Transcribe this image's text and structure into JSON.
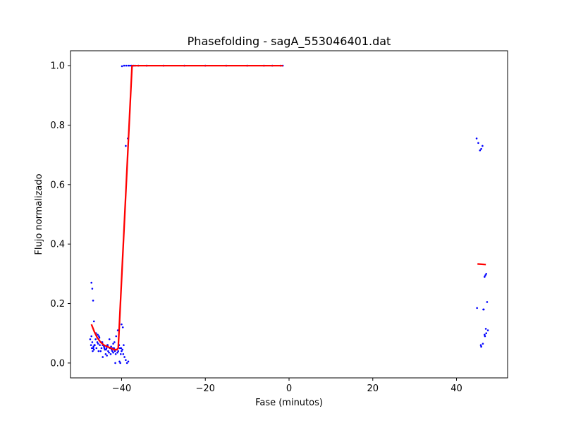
{
  "chart_data": {
    "type": "scatter",
    "title": "Phasefolding - sagA_553046401.dat",
    "xlabel": "Fase (minutos)",
    "ylabel": "Flujo normalizado",
    "xlim": [
      -52.2,
      52.2
    ],
    "ylim": [
      -0.05,
      1.05
    ],
    "xticks": [
      -40,
      -20,
      0,
      20,
      40
    ],
    "xtick_labels": [
      "−40",
      "−20",
      "0",
      "20",
      "40"
    ],
    "yticks": [
      0.0,
      0.2,
      0.4,
      0.6,
      0.8,
      1.0
    ],
    "ytick_labels": [
      "0.0",
      "0.2",
      "0.4",
      "0.6",
      "0.8",
      "1.0"
    ],
    "grid": false,
    "colors": {
      "points": "#0000ff",
      "fit": "#ff0000"
    },
    "series": [
      {
        "kind": "points",
        "x": [
          -47.5,
          -47.3,
          -47.1,
          -46.9,
          -46.7,
          -46.5,
          -47.2,
          -47.0,
          -46.8,
          -46.6,
          -46.4,
          -46.2,
          -46.0,
          -45.8,
          -45.6,
          -45.4,
          -45.2,
          -45.0,
          -44.8,
          -44.6,
          -44.4,
          -44.2,
          -44.0,
          -43.8,
          -43.6,
          -43.4,
          -43.2,
          -43.0,
          -42.8,
          -42.6,
          -42.4,
          -42.2,
          -42.0,
          -41.8,
          -41.6,
          -41.4,
          -41.2,
          -41.0,
          -40.8,
          -40.6,
          -40.4,
          -40.2,
          -40.0,
          -39.8,
          -39.6,
          -46.1,
          -45.7,
          -45.3,
          -44.9,
          -44.5,
          -44.1,
          -43.7,
          -43.3,
          -42.9,
          -42.5,
          -42.1,
          -41.7,
          -41.3,
          -40.9,
          -40.5,
          -40.1,
          -39.7,
          -39.3,
          -39.0,
          -38.7,
          -38.4,
          -41.5,
          -40.3,
          -39.5,
          -40.0,
          -42.0,
          -43.5,
          -44.5,
          -45.5,
          -47.2,
          -47.0,
          -46.8,
          -46.6,
          -39.0,
          -38.5,
          -39.9,
          -39.4,
          -38.9,
          -38.4,
          -38.0,
          -37.6,
          -37.2,
          -36.8,
          -36.0,
          -34.0,
          -30.0,
          -25.0,
          -20.0,
          -15.0,
          -10.0,
          -6.0,
          -4.0,
          -2.0,
          -1.5,
          44.8,
          45.2,
          45.6,
          45.9,
          46.2,
          46.5,
          46.7,
          46.9,
          47.1,
          47.3,
          45.9,
          46.3,
          46.7,
          47.1,
          47.5,
          45.8,
          46.4,
          47.0,
          44.9,
          46.8
        ],
        "y": [
          0.08,
          0.06,
          0.05,
          0.04,
          0.055,
          0.06,
          0.09,
          0.07,
          0.05,
          0.045,
          0.06,
          0.08,
          0.05,
          0.07,
          0.065,
          0.09,
          0.06,
          0.04,
          0.05,
          0.07,
          0.06,
          0.055,
          0.045,
          0.03,
          0.05,
          0.06,
          0.04,
          0.035,
          0.05,
          0.03,
          0.045,
          0.04,
          0.035,
          0.05,
          0.04,
          0.03,
          0.045,
          0.035,
          0.04,
          0.06,
          0.05,
          0.03,
          0.04,
          0.045,
          0.03,
          0.1,
          0.095,
          0.085,
          0.07,
          0.06,
          0.05,
          0.045,
          0.06,
          0.08,
          0.055,
          0.05,
          0.07,
          0.09,
          0.11,
          0.005,
          0.05,
          0.12,
          0.02,
          0.01,
          0.0,
          0.005,
          0.0,
          0.0,
          0.06,
          0.13,
          0.065,
          0.025,
          0.02,
          0.04,
          0.27,
          0.25,
          0.21,
          0.14,
          0.73,
          0.755,
          0.998,
          1.0,
          1.0,
          1.0,
          1.0,
          1.0,
          1.0,
          1.0,
          1.0,
          1.0,
          1.0,
          1.0,
          1.0,
          1.0,
          1.0,
          1.0,
          1.0,
          1.0,
          1.0,
          0.755,
          0.74,
          0.715,
          0.72,
          0.73,
          0.18,
          0.29,
          0.295,
          0.3,
          0.205,
          0.055,
          0.065,
          0.095,
          0.1,
          0.11,
          0.06,
          0.18,
          0.115,
          0.185,
          0.09
        ]
      },
      {
        "kind": "fit",
        "segments": [
          {
            "x": [
              -47.2,
              -46.5,
              -45.8,
              -45.0,
              -44.2,
              -43.4,
              -42.6,
              -41.8,
              -41.1,
              -40.8,
              -37.5,
              -1.5
            ],
            "y": [
              0.13,
              0.105,
              0.085,
              0.07,
              0.06,
              0.055,
              0.05,
              0.045,
              0.045,
              0.05,
              1.0,
              1.0
            ]
          },
          {
            "x": [
              45.0,
              47.0
            ],
            "y": [
              0.333,
              0.331
            ]
          }
        ]
      }
    ]
  }
}
